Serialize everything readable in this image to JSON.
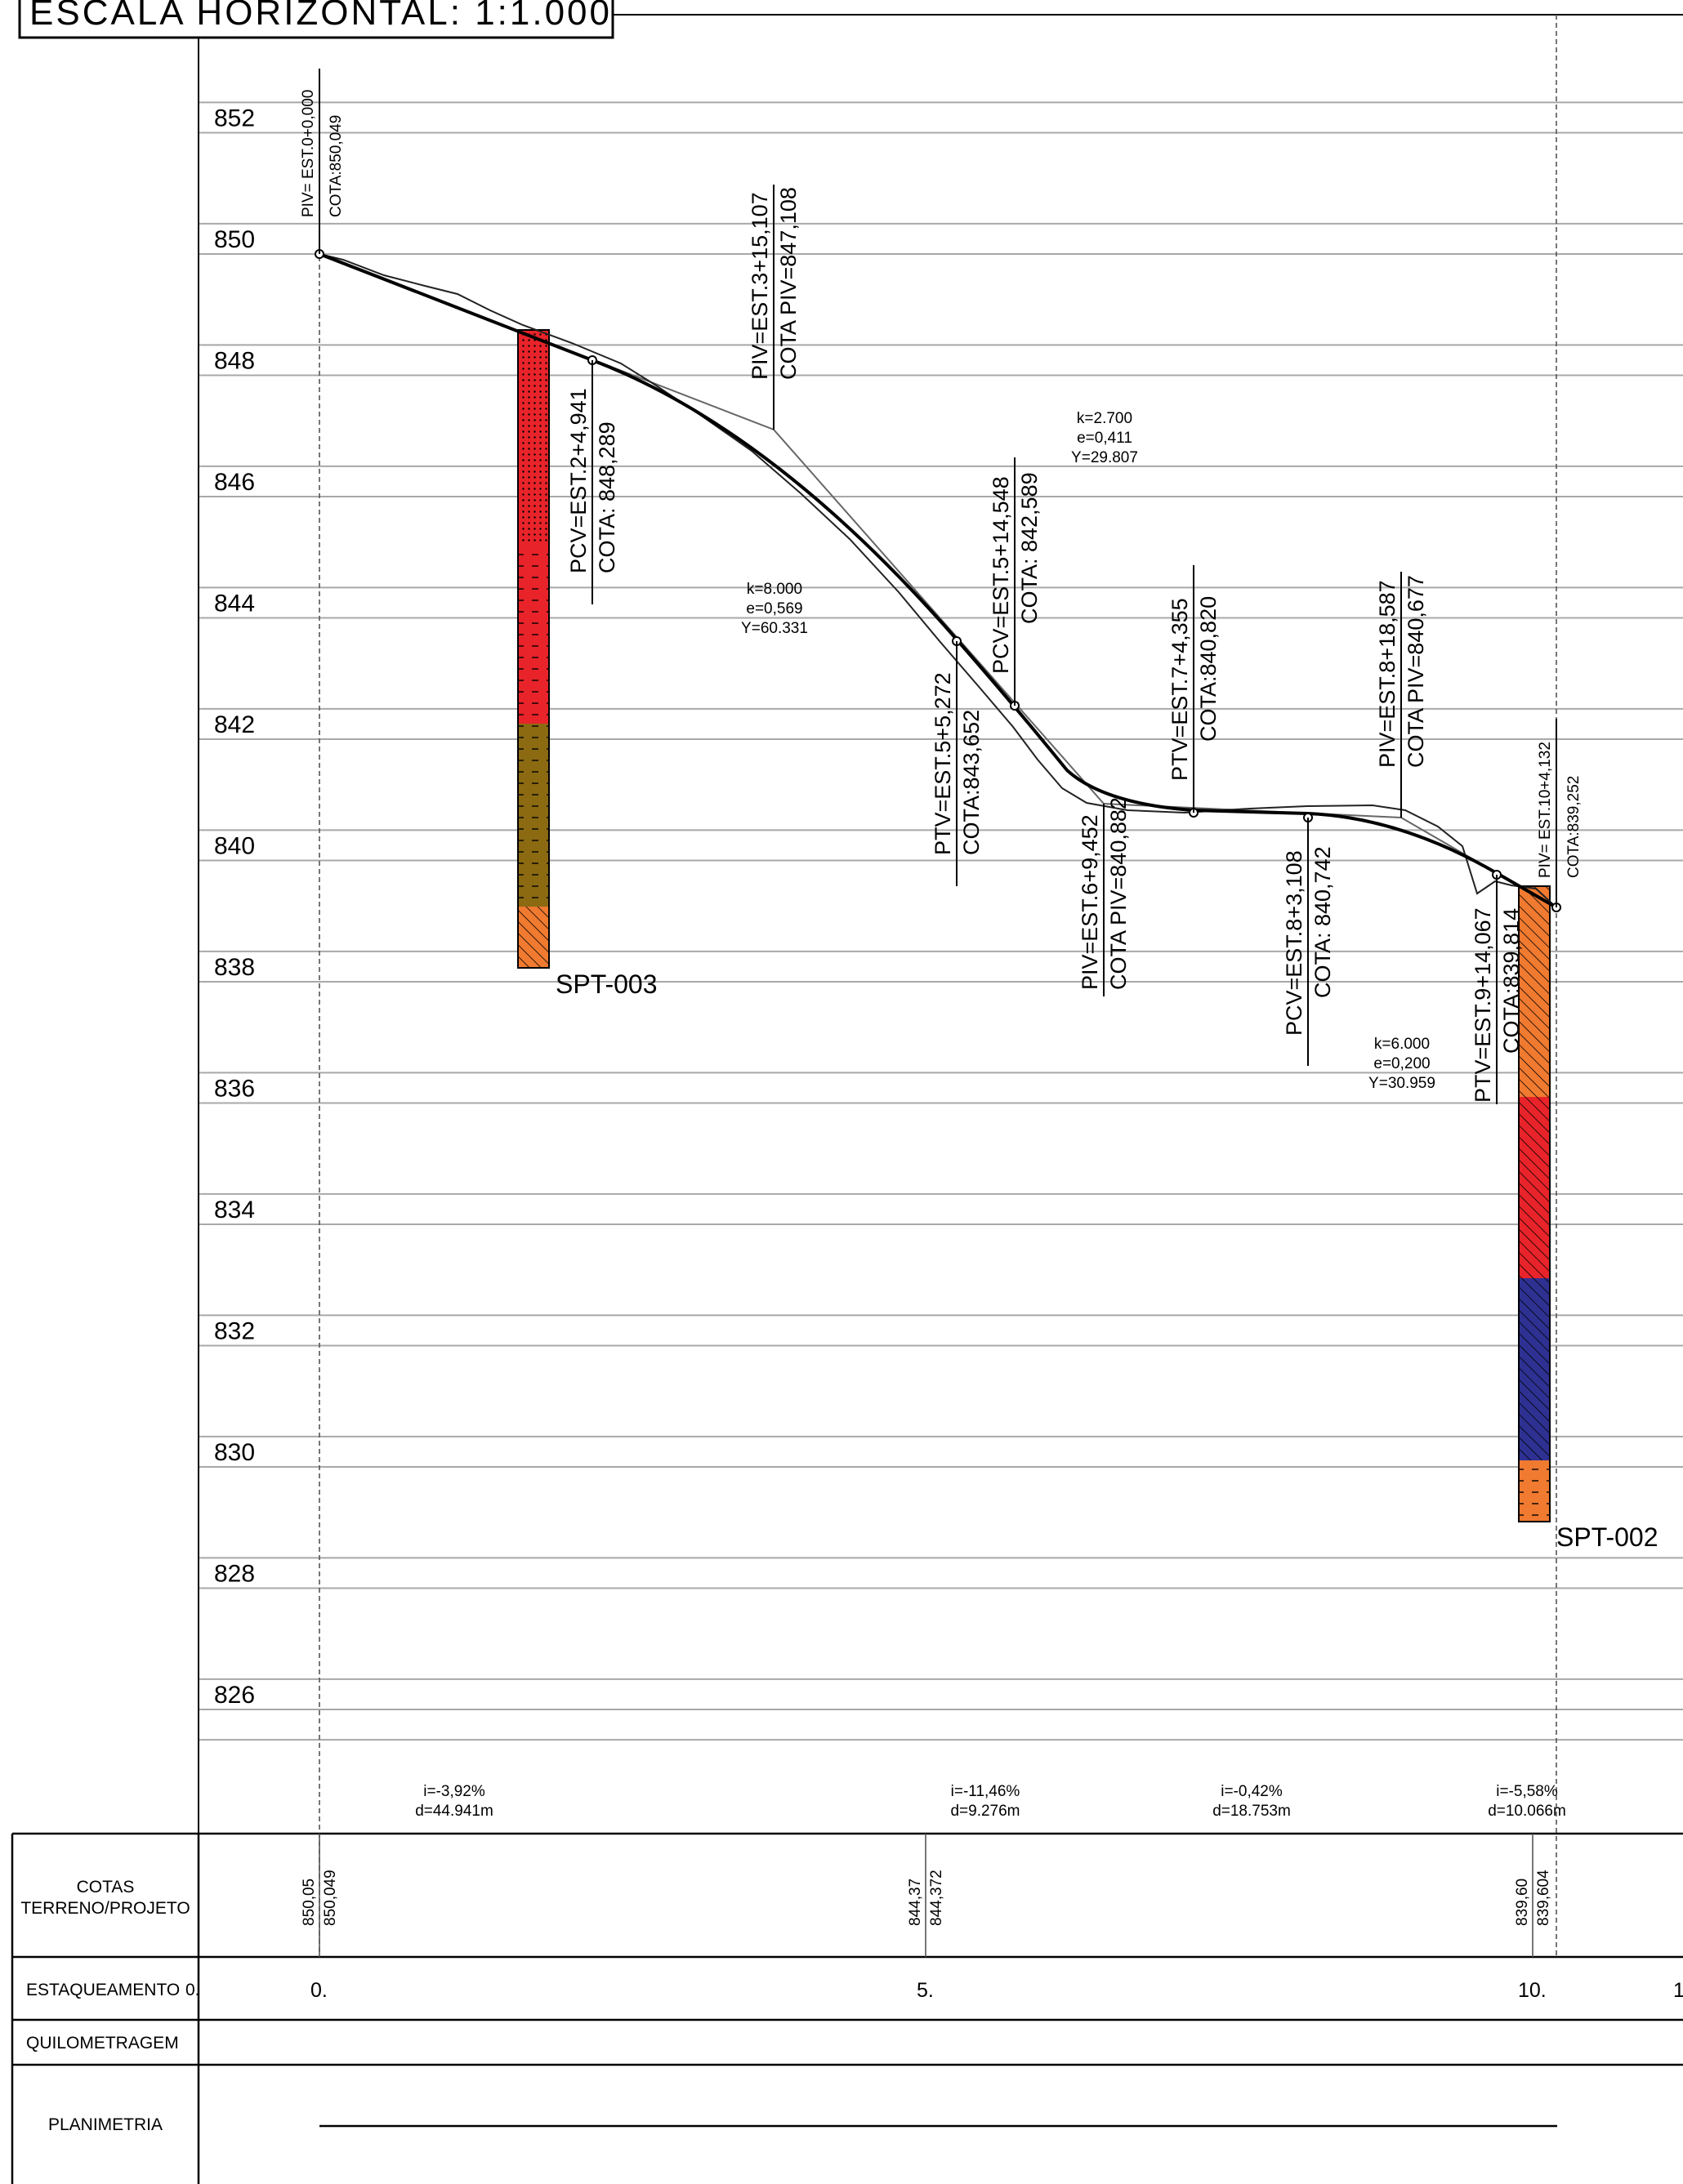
{
  "title": "ESCALA HORIZONTAL: 1:1.000",
  "elevations": [
    852,
    850,
    848,
    846,
    844,
    842,
    840,
    838,
    836,
    834,
    832,
    830,
    828,
    826
  ],
  "vertical_points": [
    {
      "lines": [
        "PIV= EST.0+0,000",
        "COTA:850,049"
      ]
    },
    {
      "lines": [
        "PCV=EST.2+4,941",
        "COTA: 848,289"
      ]
    },
    {
      "lines": [
        "PIV=EST.3+15,107",
        "COTA PIV=847,108"
      ]
    },
    {
      "lines": [
        "PTV=EST.5+5,272",
        "COTA:843,652"
      ]
    },
    {
      "lines": [
        "PCV=EST.5+14,548",
        "COTA: 842,589"
      ]
    },
    {
      "lines": [
        "PIV=EST.6+9,452",
        "COTA PIV=840,882"
      ]
    },
    {
      "lines": [
        "PTV=EST.7+4,355",
        "COTA:840,820"
      ]
    },
    {
      "lines": [
        "PCV=EST.8+3,108",
        "COTA: 840,742"
      ]
    },
    {
      "lines": [
        "PIV=EST.8+18,587",
        "COTA PIV=840,677"
      ]
    },
    {
      "lines": [
        "PTV=EST.9+14,067",
        "COTA:839,814"
      ]
    },
    {
      "lines": [
        "PIV= EST.10+4,132",
        "COTA:839,252"
      ]
    }
  ],
  "curve_params": [
    {
      "k": "k=8.000",
      "e": "e=0,569",
      "y": "Y=60.331"
    },
    {
      "k": "k=2.700",
      "e": "e=0,411",
      "y": "Y=29.807"
    },
    {
      "k": "k=6.000",
      "e": "e=0,200",
      "y": "Y=30.959"
    }
  ],
  "boreholes": [
    {
      "name": "SPT-003",
      "layer_colors": [
        "#e8242a",
        "#e8242a",
        "#8b6a12",
        "#f07a30"
      ]
    },
    {
      "name": "SPT-002",
      "layer_colors": [
        "#f07a30",
        "#e8242a",
        "#2e3192",
        "#f07a30"
      ]
    }
  ],
  "slopes": [
    {
      "i": "i=-3,92%",
      "d": "d=44.941m"
    },
    {
      "i": "i=-11,46%",
      "d": "d=9.276m"
    },
    {
      "i": "i=-0,42%",
      "d": "d=18.753m"
    },
    {
      "i": "i=-5,58%",
      "d": "d=10.066m"
    }
  ],
  "table": {
    "cotas_label": "COTAS\nTERRENO/PROJETO",
    "estaqueamento_label": "ESTAQUEAMENTO",
    "quilometragem_label": "QUILOMETRAGEM",
    "planimetria_label": "PLANIMETRIA",
    "cotas": [
      {
        "terreno": "850,05",
        "projeto": "850,049"
      },
      {
        "terreno": "844,37",
        "projeto": "844,372"
      },
      {
        "terreno": "839,60",
        "projeto": "839,604"
      }
    ],
    "stations": [
      "0.",
      "0.",
      "5.",
      "10.",
      "1"
    ]
  }
}
